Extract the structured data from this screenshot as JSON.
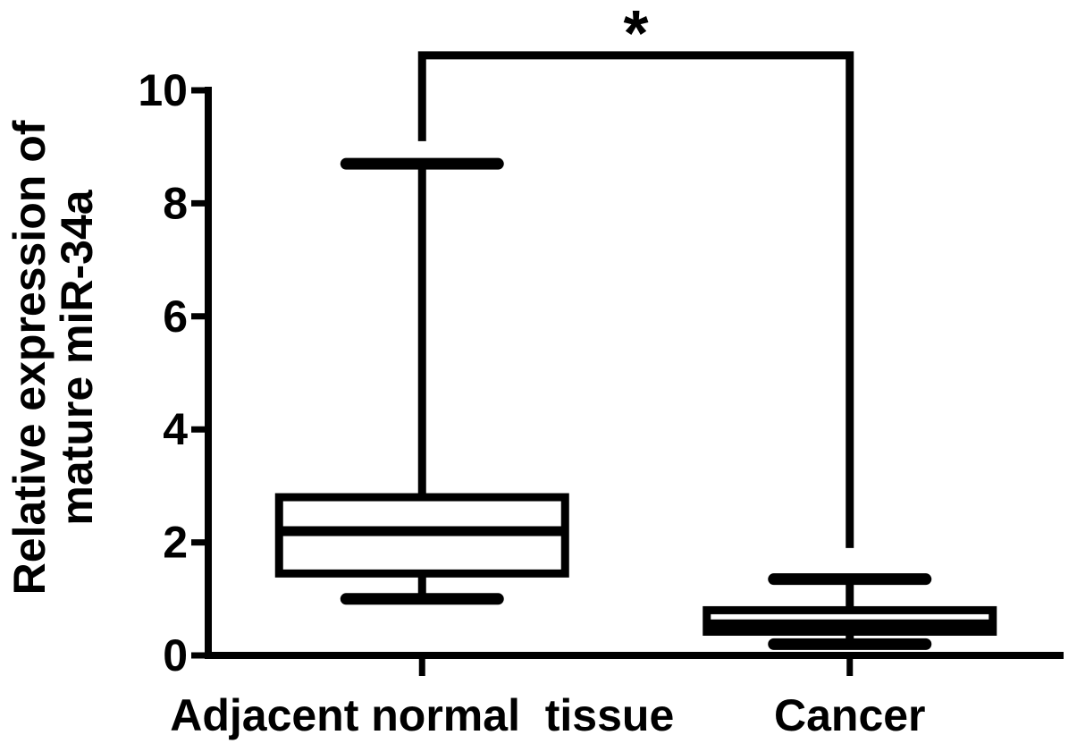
{
  "figure": {
    "background": "#ffffff",
    "ink": "#000000"
  },
  "chart_data": {
    "type": "box",
    "title": "",
    "xlabel": "",
    "ylabel_lines": [
      "Relative expression of",
      "mature miR-34a"
    ],
    "categories": [
      "Adjacent normal  tissue",
      "Cancer"
    ],
    "yticks": [
      0,
      2,
      4,
      6,
      8,
      10
    ],
    "ylim": [
      0,
      10
    ],
    "grid": false,
    "legend": false,
    "series": [
      {
        "name": "Adjacent normal  tissue",
        "min": 1.0,
        "q1": 1.45,
        "median": 2.2,
        "q3": 2.8,
        "max": 8.7
      },
      {
        "name": "Cancer",
        "min": 0.2,
        "q1": 0.42,
        "median": 0.55,
        "q3": 0.8,
        "max": 1.35
      }
    ],
    "significance": {
      "label": "*",
      "between": [
        "Adjacent normal  tissue",
        "Cancer"
      ],
      "bar_top_value": 10.62,
      "left_end_value": 9.1,
      "right_end_value": 1.9
    },
    "colors": {
      "stroke": "#000000",
      "box_fill": "#ffffff"
    }
  }
}
